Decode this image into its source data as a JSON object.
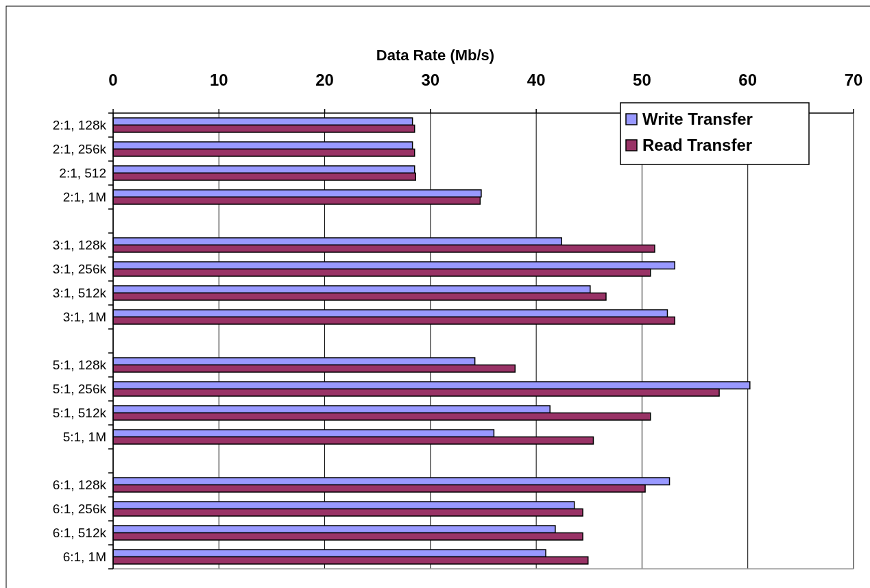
{
  "chart_data": {
    "type": "bar",
    "orientation": "horizontal",
    "xlabel": "Data Rate (Mb/s)",
    "categories": [
      "2:1, 128k",
      "2:1, 256k",
      "2:1, 512",
      "2:1, 1M",
      null,
      "3:1, 128k",
      "3:1, 256k",
      "3:1, 512k",
      "3:1, 1M",
      null,
      "5:1, 128k",
      "5:1, 256k",
      "5:1, 512k",
      "5:1, 1M",
      null,
      "6:1, 128k",
      "6:1, 256k",
      "6:1, 512k",
      "6:1, 1M"
    ],
    "series": [
      {
        "name": "Write Transfer",
        "color": "#9999ff",
        "values": [
          28.3,
          28.3,
          28.5,
          34.8,
          null,
          42.4,
          53.1,
          45.1,
          52.4,
          null,
          34.2,
          60.2,
          41.3,
          36.0,
          null,
          52.6,
          43.6,
          41.8,
          40.9
        ]
      },
      {
        "name": "Read Transfer",
        "color": "#993366",
        "values": [
          28.5,
          28.5,
          28.6,
          34.7,
          null,
          51.2,
          50.8,
          46.6,
          53.1,
          null,
          38.0,
          57.3,
          50.8,
          45.4,
          null,
          50.3,
          44.4,
          44.4,
          44.9
        ]
      }
    ],
    "xlim": [
      0,
      70
    ],
    "xticks": [
      0,
      10,
      20,
      30,
      40,
      50,
      60,
      70
    ],
    "grid": "x",
    "legend": "top right"
  }
}
